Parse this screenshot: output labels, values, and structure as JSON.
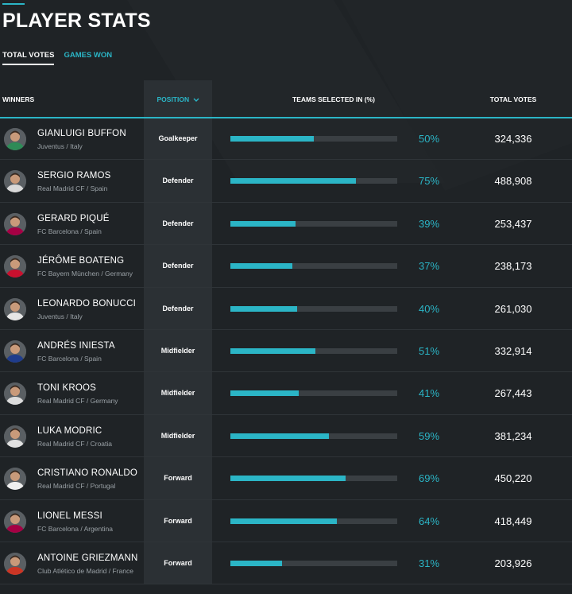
{
  "page": {
    "title": "PLAYER STATS",
    "tabs": [
      {
        "label": "TOTAL VOTES",
        "active": true
      },
      {
        "label": "GAMES WON",
        "active": false
      }
    ],
    "accent_color": "#2bb5c6",
    "background_color": "#1f2326"
  },
  "table": {
    "headers": {
      "winners": "WINNERS",
      "position": "POSITION",
      "teams": "TEAMS SELECTED IN (%)",
      "votes": "TOTAL VOTES"
    },
    "rows": [
      {
        "name": "GIANLUIGI BUFFON",
        "club": "Juventus / Italy",
        "position": "Goalkeeper",
        "percent": 50,
        "percent_label": "50%",
        "votes": "324,336",
        "avatar_color": "#2e8b57"
      },
      {
        "name": "SERGIO RAMOS",
        "club": "Real Madrid CF / Spain",
        "position": "Defender",
        "percent": 75,
        "percent_label": "75%",
        "votes": "488,908",
        "avatar_color": "#d9d9d9"
      },
      {
        "name": "GERARD PIQUÉ",
        "club": "FC Barcelona / Spain",
        "position": "Defender",
        "percent": 39,
        "percent_label": "39%",
        "votes": "253,437",
        "avatar_color": "#a50044"
      },
      {
        "name": "JÉRÔME BOATENG",
        "club": "FC Bayern München / Germany",
        "position": "Defender",
        "percent": 37,
        "percent_label": "37%",
        "votes": "238,173",
        "avatar_color": "#c8102e"
      },
      {
        "name": "LEONARDO BONUCCI",
        "club": "Juventus / Italy",
        "position": "Defender",
        "percent": 40,
        "percent_label": "40%",
        "votes": "261,030",
        "avatar_color": "#e6e6e6"
      },
      {
        "name": "ANDRÉS INIESTA",
        "club": "FC Barcelona / Spain",
        "position": "Midfielder",
        "percent": 51,
        "percent_label": "51%",
        "votes": "332,914",
        "avatar_color": "#1f3c8c"
      },
      {
        "name": "TONI KROOS",
        "club": "Real Madrid CF / Germany",
        "position": "Midfielder",
        "percent": 41,
        "percent_label": "41%",
        "votes": "267,443",
        "avatar_color": "#dcdcdc"
      },
      {
        "name": "LUKA MODRIC",
        "club": "Real Madrid CF / Croatia",
        "position": "Midfielder",
        "percent": 59,
        "percent_label": "59%",
        "votes": "381,234",
        "avatar_color": "#e0e0e0"
      },
      {
        "name": "CRISTIANO RONALDO",
        "club": "Real Madrid CF / Portugal",
        "position": "Forward",
        "percent": 69,
        "percent_label": "69%",
        "votes": "450,220",
        "avatar_color": "#f0f0f0"
      },
      {
        "name": "LIONEL MESSI",
        "club": "FC Barcelona / Argentina",
        "position": "Forward",
        "percent": 64,
        "percent_label": "64%",
        "votes": "418,449",
        "avatar_color": "#a50044"
      },
      {
        "name": "ANTOINE GRIEZMANN",
        "club": "Club Atlético de Madrid / France",
        "position": "Forward",
        "percent": 31,
        "percent_label": "31%",
        "votes": "203,926",
        "avatar_color": "#cb3524"
      }
    ]
  }
}
